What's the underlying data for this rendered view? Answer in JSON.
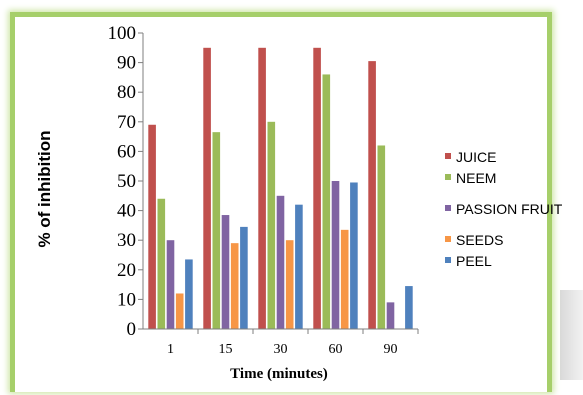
{
  "chart_data": {
    "type": "bar",
    "title": "",
    "xlabel": "Time (minutes)",
    "ylabel": "% of inhibition",
    "categories": [
      "1",
      "15",
      "30",
      "60",
      "90"
    ],
    "ylim": [
      0,
      100
    ],
    "ytick_step": 10,
    "grid": false,
    "legend_position": "right",
    "series": [
      {
        "name": "JUICE",
        "color": "#c0504d",
        "values": [
          69,
          95,
          95,
          95,
          90.5
        ]
      },
      {
        "name": "NEEM",
        "color": "#9bbb59",
        "values": [
          44,
          66.5,
          70,
          86,
          62
        ]
      },
      {
        "name": "PASSION FRUIT",
        "color": "#8064a2",
        "values": [
          30,
          38.5,
          45,
          50,
          9
        ]
      },
      {
        "name": "SEEDS",
        "color": "#f79646",
        "values": [
          12,
          29,
          30,
          33.5,
          0
        ]
      },
      {
        "name": "PEEL",
        "color": "#4f81bd",
        "values": [
          23.5,
          34.5,
          42,
          49.5,
          14.5
        ]
      }
    ]
  }
}
